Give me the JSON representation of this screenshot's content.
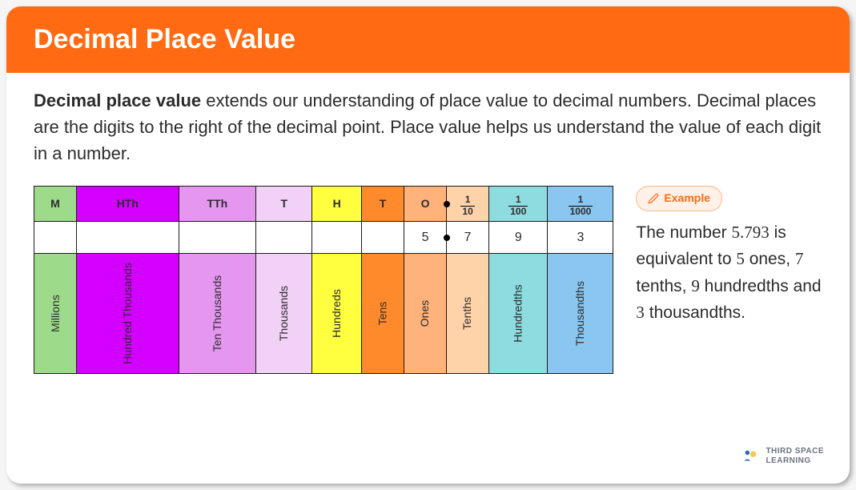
{
  "header": {
    "title": "Decimal Place Value"
  },
  "intro": {
    "bold": "Decimal place value",
    "rest": " extends our understanding of place value to decimal numbers. Decimal places are the digits to the right of the decimal point. Place value helps us understand the value of each digit in a number."
  },
  "table": {
    "columns": [
      {
        "abbr": "M",
        "name": "Millions",
        "bg": "#9ddb8a",
        "frac": null
      },
      {
        "abbr": "HTh",
        "name": "Hundred Thousands",
        "bg": "#d400ff",
        "frac": null
      },
      {
        "abbr": "TTh",
        "name": "Ten Thousands",
        "bg": "#e597f0",
        "frac": null
      },
      {
        "abbr": "T",
        "name": "Thousands",
        "bg": "#f2d1f6",
        "frac": null
      },
      {
        "abbr": "H",
        "name": "Hundreds",
        "bg": "#ffff3f",
        "frac": null
      },
      {
        "abbr": "T",
        "name": "Tens",
        "bg": "#ff8a2b",
        "frac": null
      },
      {
        "abbr": "O",
        "name": "Ones",
        "bg": "#ffb37a",
        "frac": null
      },
      {
        "abbr": null,
        "name": "Tenths",
        "bg": "#ffd3aa",
        "frac": {
          "num": "1",
          "den": "10"
        }
      },
      {
        "abbr": null,
        "name": "Hundredths",
        "bg": "#8edbe0",
        "frac": {
          "num": "1",
          "den": "100"
        }
      },
      {
        "abbr": null,
        "name": "Thousandths",
        "bg": "#8ac6f0",
        "frac": {
          "num": "1",
          "den": "1000"
        }
      }
    ],
    "values": [
      "",
      "",
      "",
      "",
      "",
      "",
      "5",
      "7",
      "9",
      "3"
    ],
    "decimal_after_index": 6
  },
  "example": {
    "badge": "Example",
    "text_parts": {
      "p1": "The number ",
      "num": "5.793",
      "p2": " is equivalent to ",
      "d1": "5",
      "u1": " ones, ",
      "d2": "7",
      "u2": " tenths, ",
      "d3": "9",
      "u3": " hundredths and ",
      "d4": "3",
      "u4": " thousandths."
    }
  },
  "logo": {
    "line1": "THIRD SPACE",
    "line2": "LEARNING"
  },
  "colors": {
    "header_bg": "#ff6a13",
    "badge_border": "#ffb78a",
    "badge_bg": "#fff1e7"
  }
}
